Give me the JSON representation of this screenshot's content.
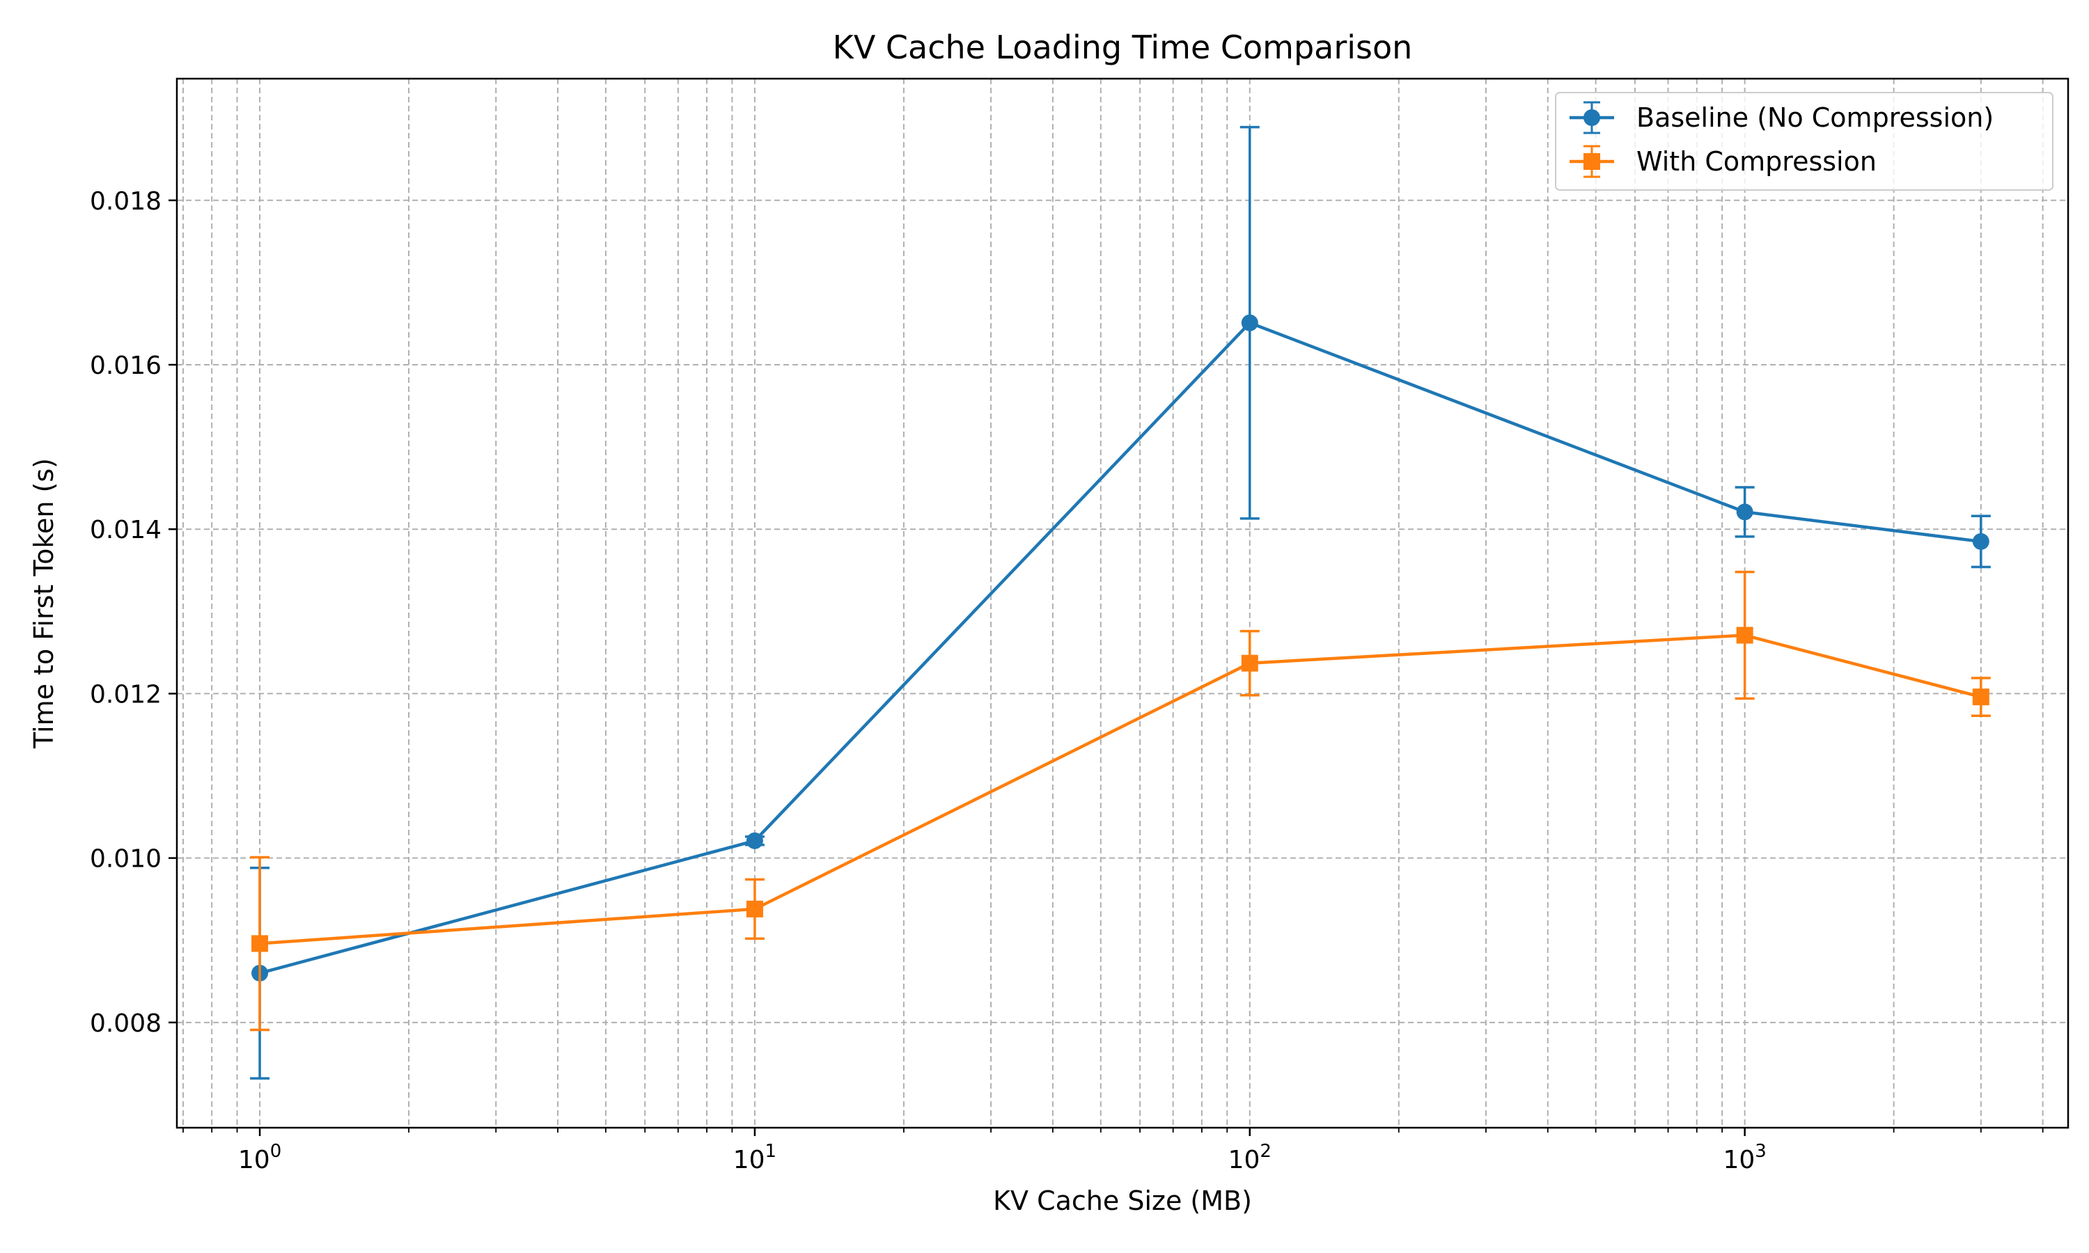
{
  "chart_data": {
    "type": "line",
    "title": "KV Cache Loading Time Comparison",
    "xlabel": "KV Cache Size (MB)",
    "ylabel": "Time to First Token (s)",
    "xscale": "log",
    "xlim": [
      0.68,
      4500
    ],
    "ylim": [
      0.00672,
      0.01948
    ],
    "x_tick_labels": [
      {
        "base": "10",
        "exp": "0",
        "value": 1
      },
      {
        "base": "10",
        "exp": "1",
        "value": 10
      },
      {
        "base": "10",
        "exp": "2",
        "value": 100
      },
      {
        "base": "10",
        "exp": "3",
        "value": 1000
      }
    ],
    "y_ticks": [
      0.008,
      0.01,
      0.012,
      0.014,
      0.016,
      0.018
    ],
    "y_tick_labels": [
      "0.008",
      "0.010",
      "0.012",
      "0.014",
      "0.016",
      "0.018"
    ],
    "grid": true,
    "legend_position": "top-right",
    "x": [
      1,
      10,
      100,
      1000,
      3000
    ],
    "series": [
      {
        "name": "Baseline (No Compression)",
        "color": "#1f77b4",
        "marker": "circle",
        "values": [
          0.0086,
          0.01021,
          0.01651,
          0.01421,
          0.01385
        ],
        "error": [
          0.00128,
          5e-05,
          0.00238,
          0.0003,
          0.00031
        ]
      },
      {
        "name": "With Compression",
        "color": "#ff7f0e",
        "marker": "square",
        "values": [
          0.00896,
          0.00938,
          0.01237,
          0.01271,
          0.01196
        ],
        "error": [
          0.00105,
          0.00036,
          0.00039,
          0.00077,
          0.00023
        ]
      }
    ]
  }
}
